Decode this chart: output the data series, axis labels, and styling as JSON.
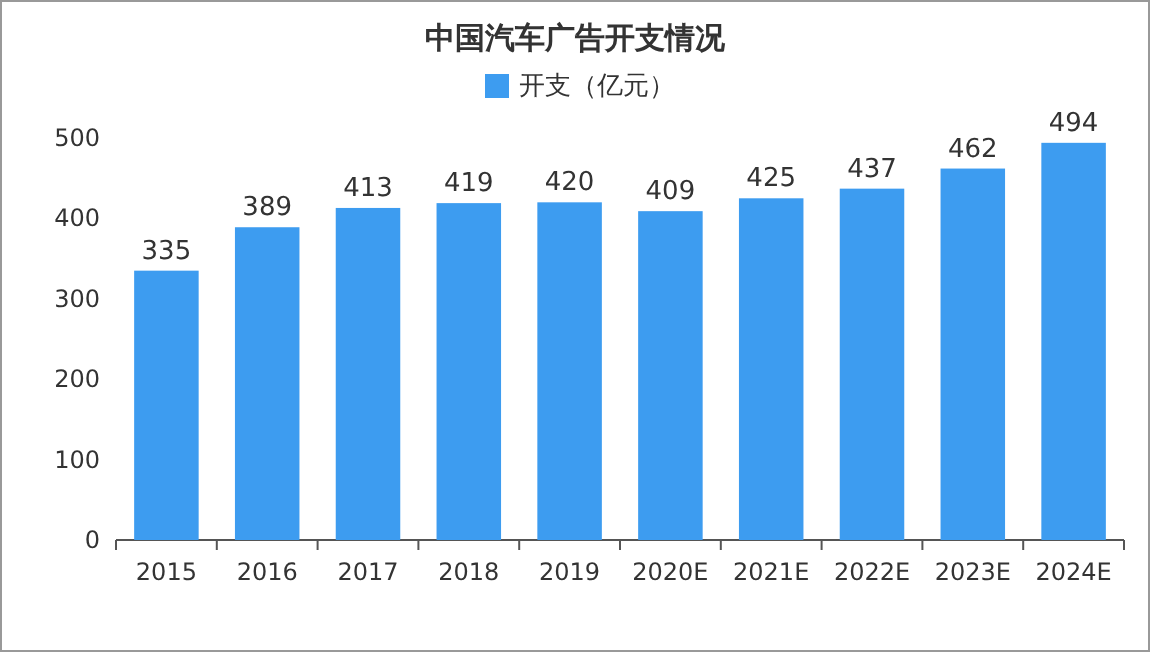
{
  "chart_data": {
    "type": "bar",
    "title": "中国汽车广告开支情况",
    "categories": [
      "2015",
      "2016",
      "2017",
      "2018",
      "2019",
      "2020E",
      "2021E",
      "2022E",
      "2023E",
      "2024E"
    ],
    "series": [
      {
        "name": "开支（亿元）",
        "color": "#3d9cf0",
        "values": [
          335,
          389,
          413,
          419,
          420,
          409,
          425,
          437,
          462,
          494
        ]
      }
    ],
    "ylim": [
      0,
      500
    ],
    "yticks": [
      0,
      100,
      200,
      300,
      400,
      500
    ],
    "grid": false,
    "legend": "top",
    "data_labels": true
  }
}
